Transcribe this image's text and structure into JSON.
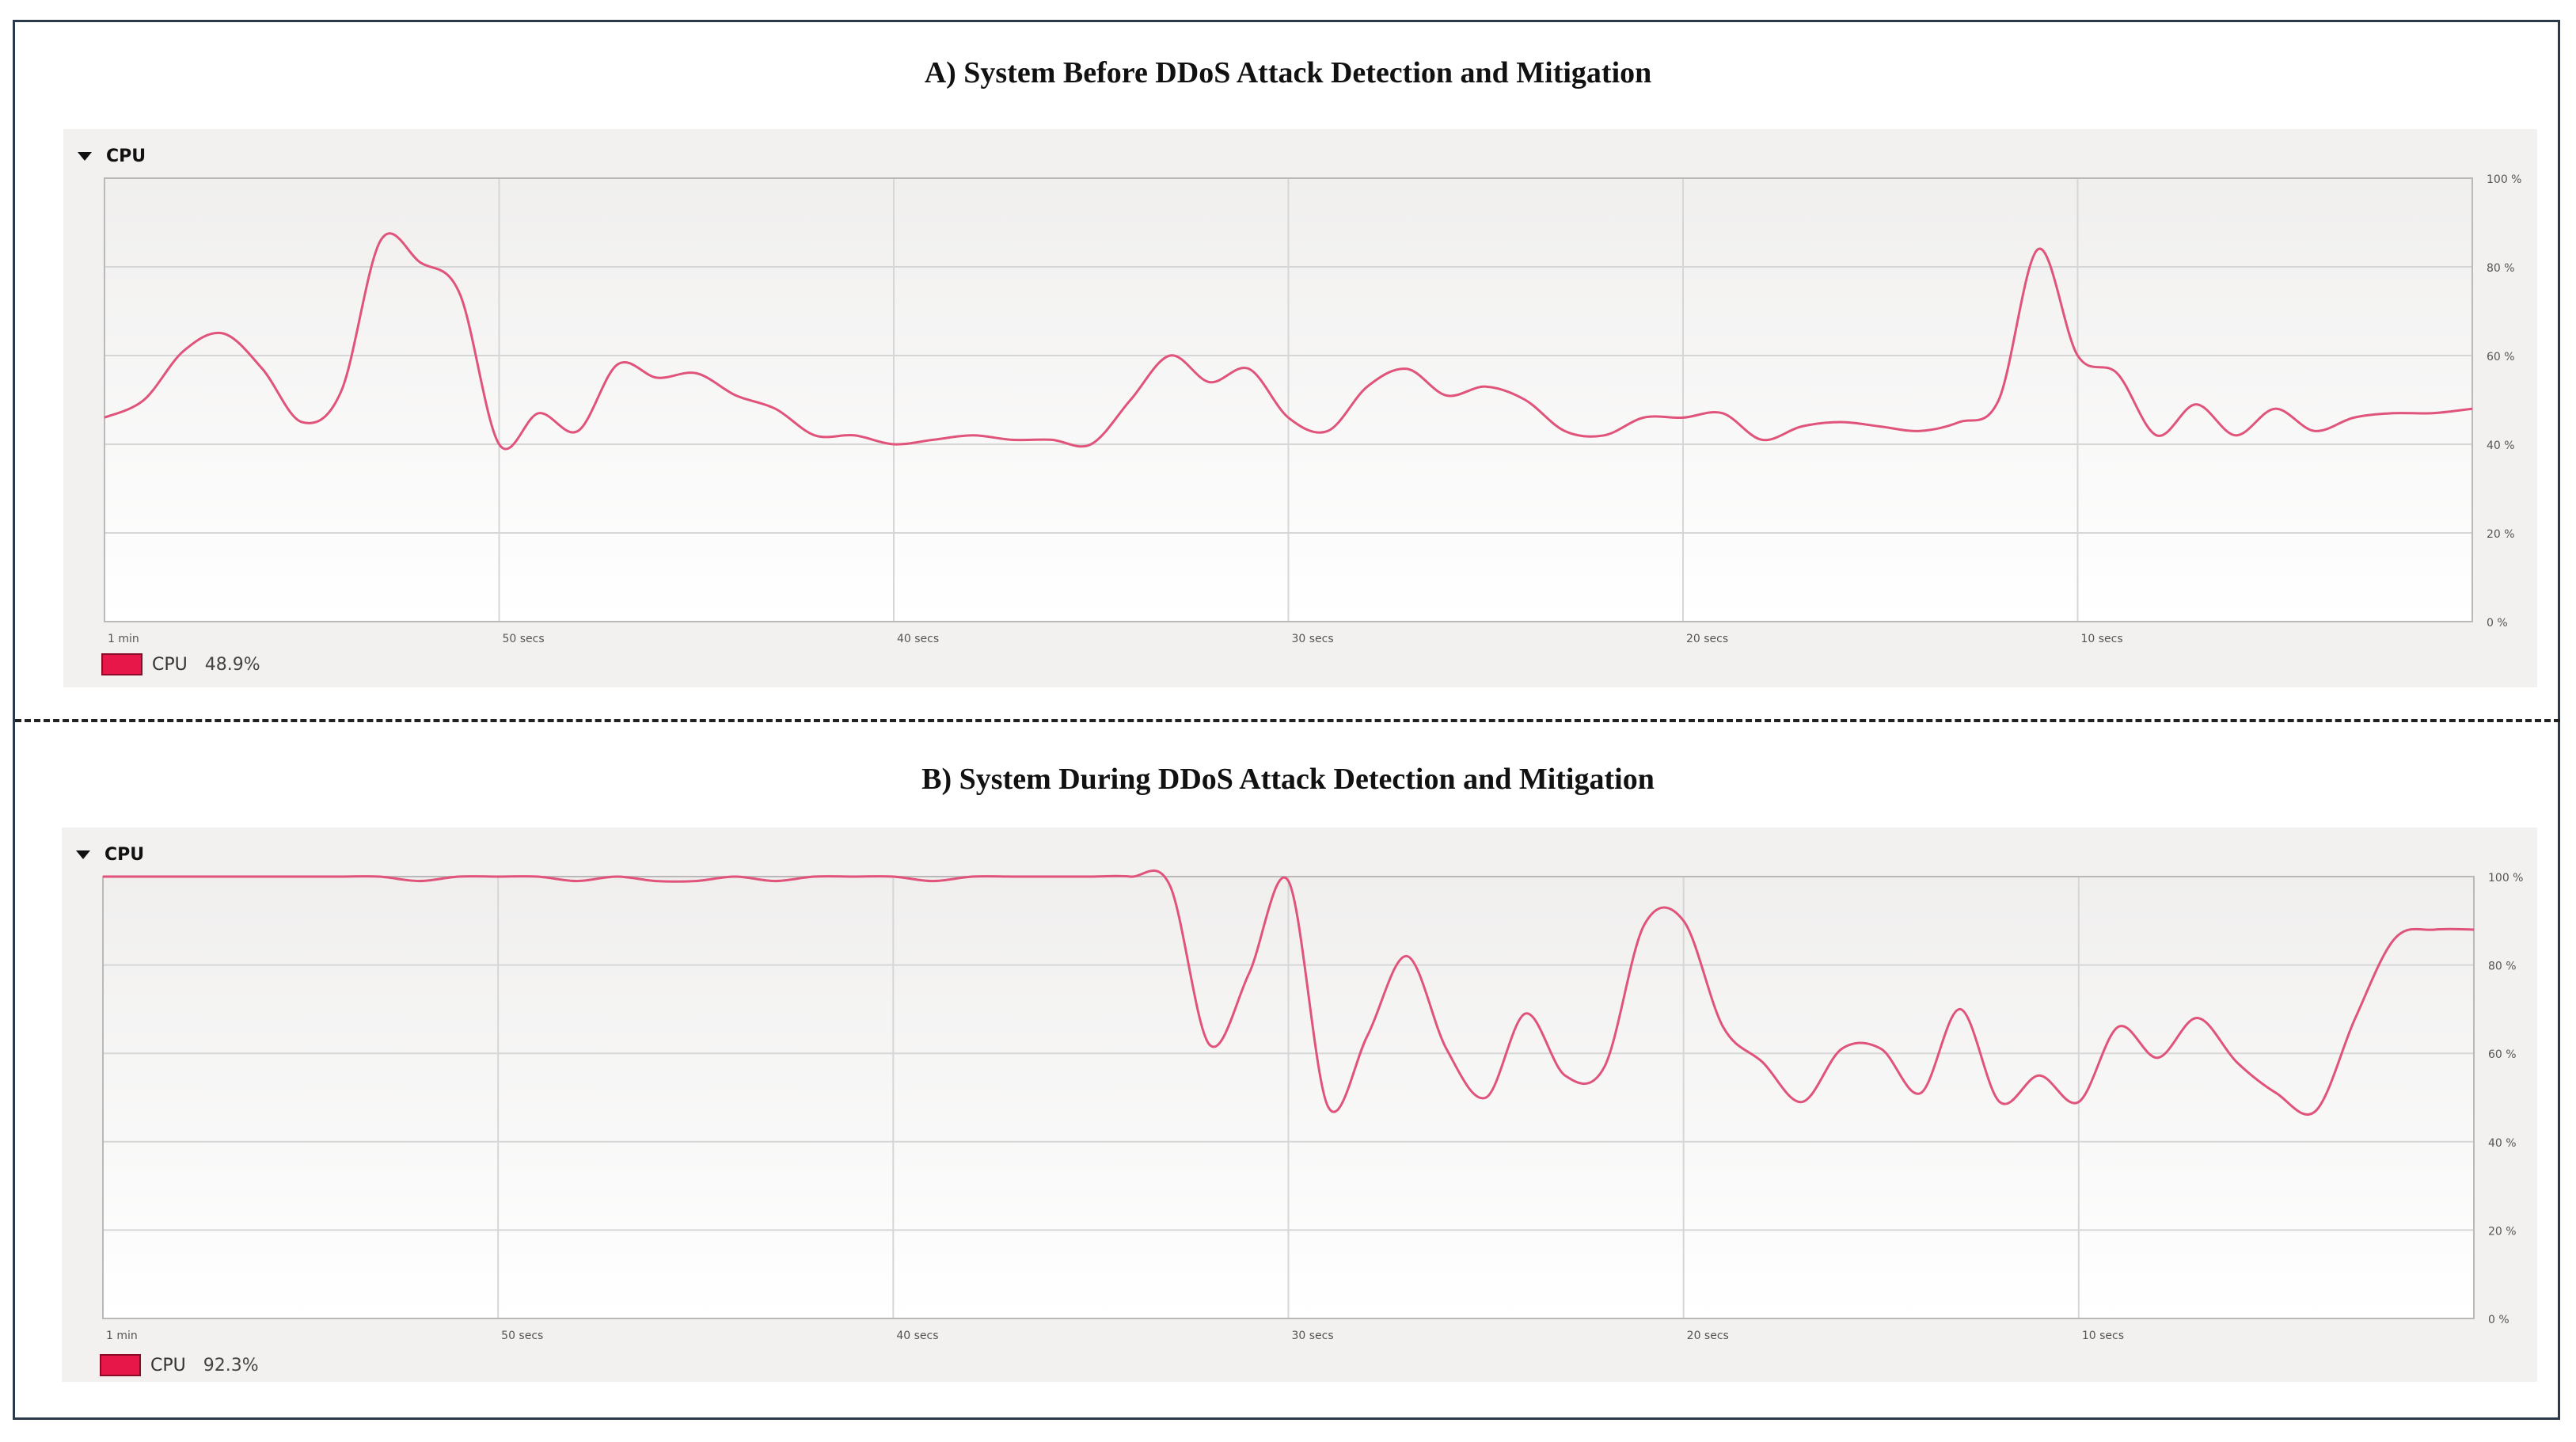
{
  "chart_data": [
    {
      "type": "line",
      "title": "A) System Before DDoS Attack Detection and Mitigation",
      "section_label": "CPU",
      "legend_label": "CPU",
      "legend_value": "48.9%",
      "line_color": "#e0537a",
      "x_ticks": [
        "1 min",
        "50 secs",
        "40 secs",
        "30 secs",
        "20 secs",
        "10 secs"
      ],
      "y_ticks": [
        "0 %",
        "20 %",
        "40 %",
        "60 %",
        "80 %",
        "100 %"
      ],
      "xlim": [
        60,
        0
      ],
      "ylim": [
        0,
        100
      ],
      "grid": true,
      "x": [
        60,
        59,
        58,
        57,
        56,
        55,
        54,
        53,
        52,
        51,
        50,
        49,
        48,
        47,
        46,
        45,
        44,
        43,
        42,
        41,
        40,
        39,
        38,
        37,
        36,
        35,
        34,
        33,
        32,
        31,
        30,
        29,
        28,
        27,
        26,
        25,
        24,
        23,
        22,
        21,
        20,
        19,
        18,
        17,
        16,
        15,
        14,
        13,
        12,
        11,
        10,
        9,
        8,
        7,
        6,
        5,
        4,
        3,
        2,
        1,
        0
      ],
      "series": [
        {
          "values": [
            46,
            50,
            61,
            65,
            57,
            45,
            52,
            86,
            81,
            74,
            40,
            47,
            43,
            58,
            55,
            56,
            51,
            48,
            42,
            42,
            40,
            41,
            42,
            41,
            41,
            40,
            50,
            60,
            54,
            57,
            46,
            43,
            53,
            57,
            51,
            53,
            50,
            43,
            42,
            46,
            46,
            47,
            41,
            44,
            45,
            44,
            43,
            45,
            50,
            84,
            60,
            56,
            42,
            49,
            42,
            48,
            43,
            46,
            47,
            47,
            48
          ]
        }
      ]
    },
    {
      "type": "line",
      "title": "B) System During DDoS Attack Detection and Mitigation",
      "section_label": "CPU",
      "legend_label": "CPU",
      "legend_value": "92.3%",
      "line_color": "#e0537a",
      "x_ticks": [
        "1 min",
        "50 secs",
        "40 secs",
        "30 secs",
        "20 secs",
        "10 secs"
      ],
      "y_ticks": [
        "0 %",
        "20 %",
        "40 %",
        "60 %",
        "80 %",
        "100 %"
      ],
      "xlim": [
        60,
        0
      ],
      "ylim": [
        0,
        100
      ],
      "grid": true,
      "x": [
        60,
        59,
        58,
        57,
        56,
        55,
        54,
        53,
        52,
        51,
        50,
        49,
        48,
        47,
        46,
        45,
        44,
        43,
        42,
        41,
        40,
        39,
        38,
        37,
        36,
        35,
        34,
        33,
        32,
        31,
        30,
        29,
        28,
        27,
        26,
        25,
        24,
        23,
        22,
        21,
        20,
        19,
        18,
        17,
        16,
        15,
        14,
        13,
        12,
        11,
        10,
        9,
        8,
        7,
        6,
        5,
        4,
        3,
        2,
        1,
        0
      ],
      "series": [
        {
          "values": [
            100,
            100,
            100,
            100,
            100,
            100,
            100,
            100,
            99,
            100,
            100,
            100,
            99,
            100,
            99,
            99,
            100,
            99,
            100,
            100,
            100,
            99,
            100,
            100,
            100,
            100,
            100,
            98,
            62,
            78,
            99,
            48,
            64,
            82,
            61,
            50,
            69,
            55,
            57,
            89,
            90,
            66,
            58,
            49,
            61,
            61,
            51,
            70,
            49,
            55,
            49,
            66,
            59,
            68,
            58,
            51,
            47,
            68,
            86,
            88,
            88
          ]
        }
      ]
    }
  ]
}
